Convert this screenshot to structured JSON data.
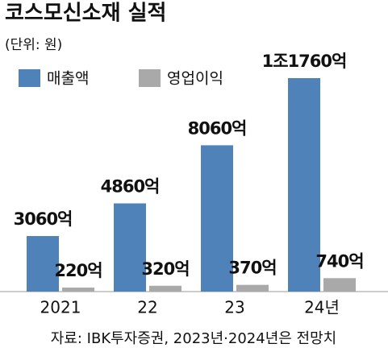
{
  "chart_data": {
    "type": "bar",
    "title": "코스모신소재 실적",
    "subtitle": "(단위: 원)",
    "categories": [
      "2021",
      "22",
      "23",
      "24년"
    ],
    "series": [
      {
        "name": "매출액",
        "color": "#4f82b8",
        "values": [
          3060,
          4860,
          8060,
          11760
        ],
        "value_labels": [
          "3060억",
          "4860억",
          "8060억",
          "1조1760억"
        ]
      },
      {
        "name": "영업이익",
        "color": "#a9a9a9",
        "values": [
          220,
          320,
          370,
          740
        ],
        "value_labels": [
          "220억",
          "320억",
          "370억",
          "740억"
        ]
      }
    ],
    "source": "자료: IBK투자증권, 2023년·2024년은 전망치"
  }
}
